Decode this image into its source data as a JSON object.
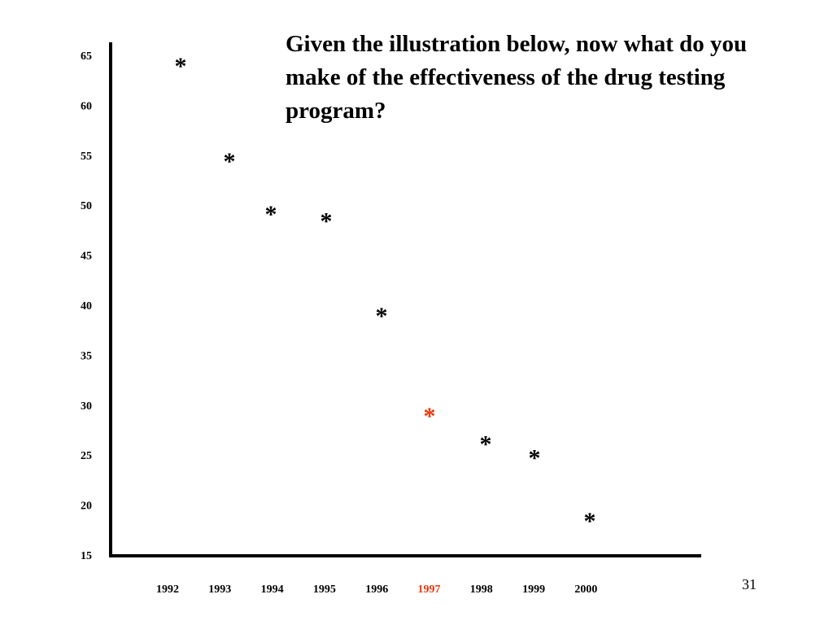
{
  "slide": {
    "title": "Given the illustration below, now what do you make of the effectiveness of the drug testing program?",
    "page_number": "31"
  },
  "colors": {
    "default": "#000000",
    "highlight": "#e8380d"
  },
  "chart_data": {
    "type": "scatter",
    "title": "",
    "xlabel": "",
    "ylabel": "",
    "marker": "*",
    "x": [
      "1992",
      "1993",
      "1994",
      "1995",
      "1996",
      "1997",
      "1998",
      "1999",
      "2000"
    ],
    "y": [
      64.5,
      55,
      49.7,
      49,
      39.5,
      29.5,
      26.7,
      25.3,
      19
    ],
    "highlight_x": "1997",
    "ylim": [
      15,
      65
    ],
    "yticks": [
      15,
      20,
      25,
      30,
      35,
      40,
      45,
      50,
      55,
      60,
      65
    ],
    "grid": false,
    "legend": "none"
  }
}
